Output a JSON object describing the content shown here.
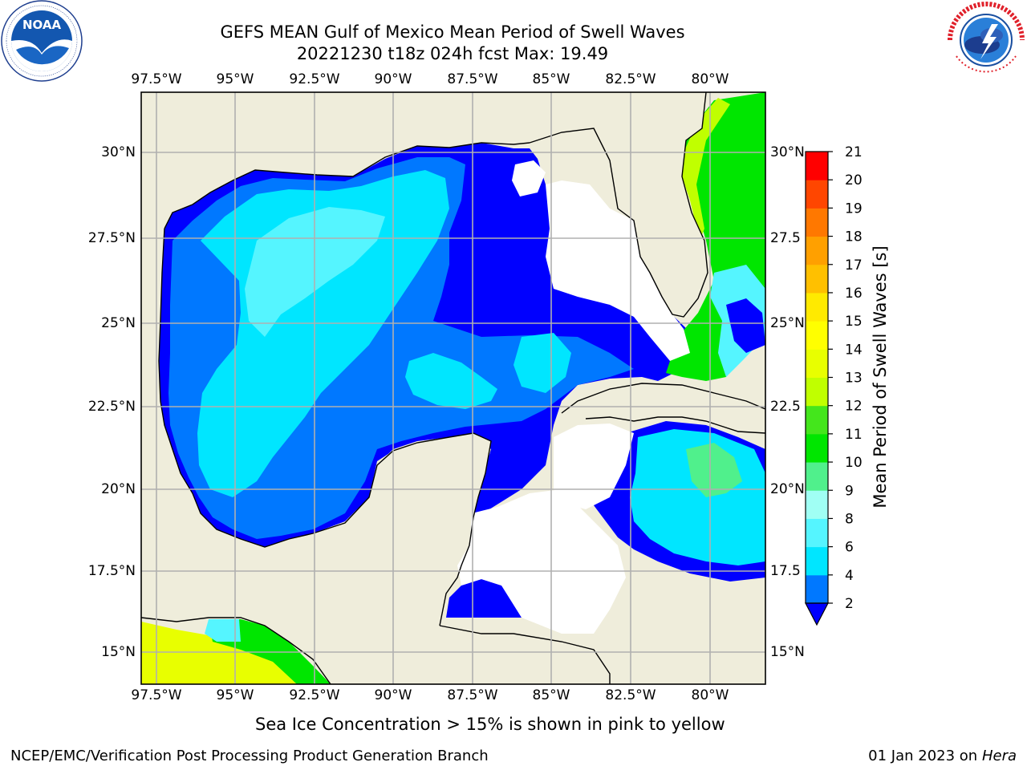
{
  "header": {
    "title_line1": "GEFS MEAN Gulf of Mexico Mean Period of Swell Waves",
    "title_line2": "20221230 t18z 024h fcst   Max: 19.49"
  },
  "logos": {
    "left": {
      "name": "noaa-logo",
      "text": "NOAA",
      "ring_text": "NATIONAL OCEANIC AND ATMOSPHERIC ADMINISTRATION · U.S. DEPARTMENT OF COMMERCE"
    },
    "right": {
      "name": "nws-logo",
      "ring_text": "NATIONAL WEATHER SERVICE"
    }
  },
  "map": {
    "lon_ticks": [
      "97.5°W",
      "95°W",
      "92.5°W",
      "90°W",
      "87.5°W",
      "85°W",
      "82.5°W",
      "80°W"
    ],
    "lat_ticks_left": [
      "30°N",
      "27.5°N",
      "25°N",
      "22.5°N",
      "20°N",
      "17.5°N",
      "15°N"
    ],
    "lat_ticks_right": [
      "30°N",
      "27.5",
      "25°N",
      "22.5",
      "20°N",
      "17.5",
      "15°N"
    ],
    "colors": {
      "land": "#efeddb",
      "ocean_missing": "#ffffff",
      "grid": "#b0b0b0",
      "coast": "#000000"
    }
  },
  "colorbar": {
    "label": "Mean Period of Swell Waves [s]",
    "tick_labels": [
      "2",
      "4",
      "6",
      "8",
      "9",
      "10",
      "11",
      "12",
      "13",
      "14",
      "15",
      "16",
      "17",
      "18",
      "19",
      "20",
      "21"
    ],
    "bins": [
      {
        "from": 2,
        "to": 4,
        "color": "#0078ff"
      },
      {
        "from": 4,
        "to": 6,
        "color": "#00e6ff"
      },
      {
        "from": 6,
        "to": 8,
        "color": "#55f5ff"
      },
      {
        "from": 8,
        "to": 9,
        "color": "#a0fff4"
      },
      {
        "from": 9,
        "to": 10,
        "color": "#50f08c"
      },
      {
        "from": 10,
        "to": 11,
        "color": "#00e600"
      },
      {
        "from": 11,
        "to": 12,
        "color": "#44e61c"
      },
      {
        "from": 12,
        "to": 13,
        "color": "#c0ff00"
      },
      {
        "from": 13,
        "to": 14,
        "color": "#e8ff00"
      },
      {
        "from": 14,
        "to": 15,
        "color": "#ffff00"
      },
      {
        "from": 15,
        "to": 16,
        "color": "#ffea00"
      },
      {
        "from": 16,
        "to": 17,
        "color": "#ffc000"
      },
      {
        "from": 17,
        "to": 18,
        "color": "#ffa000"
      },
      {
        "from": 18,
        "to": 19,
        "color": "#ff7800"
      },
      {
        "from": 19,
        "to": 20,
        "color": "#ff4600"
      },
      {
        "from": 20,
        "to": 21,
        "color": "#ff0000"
      }
    ],
    "under_color": "#0000ff"
  },
  "caption": "Sea Ice Concentration > 15% is shown in pink to yellow",
  "footer": {
    "left": "NCEP/EMC/Verification Post Processing Product Generation Branch",
    "right_date": "01 Jan 2023 on ",
    "right_host": "Hera"
  }
}
